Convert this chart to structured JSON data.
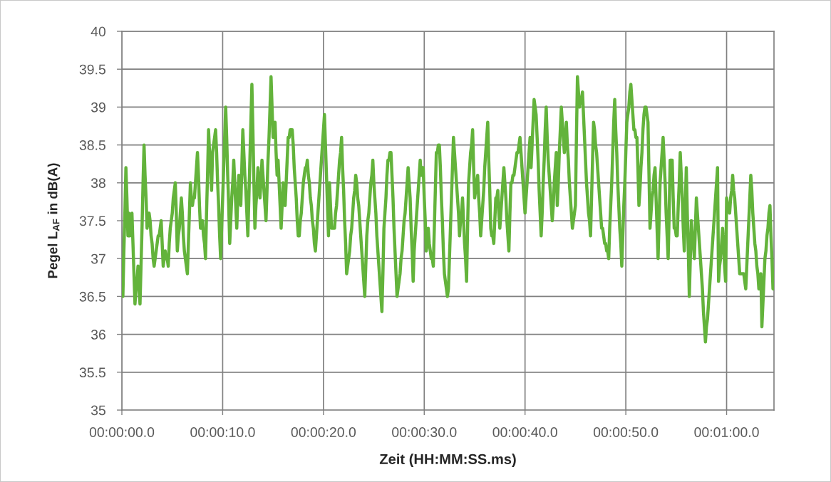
{
  "chart_data": {
    "type": "line",
    "xlabel": "Zeit (HH:MM:SS.ms)",
    "ylabel": "Pegel L$_{AF}$ in dB(A)",
    "ylim": [
      35,
      40
    ],
    "yticks": [
      35,
      35.5,
      36,
      36.5,
      37,
      37.5,
      38,
      38.5,
      39,
      39.5,
      40
    ],
    "grid": true,
    "line_style": "solid",
    "categories": [
      "00:00:00.0",
      null,
      null,
      null,
      null,
      null,
      null,
      null,
      null,
      null,
      null,
      null,
      null,
      null,
      null,
      null,
      null,
      null,
      null,
      null,
      null,
      null,
      null,
      null,
      null,
      null,
      null,
      null,
      null,
      null,
      null,
      null,
      null,
      null,
      null,
      null,
      null,
      null,
      null,
      null,
      null,
      null,
      null,
      null,
      null,
      null,
      null,
      null,
      null,
      null,
      null,
      null,
      null,
      null,
      null,
      null,
      null,
      null,
      null,
      null,
      null,
      null,
      null,
      null,
      null,
      null,
      null,
      null,
      null,
      null,
      null,
      null,
      null,
      null,
      null,
      null,
      null,
      null,
      null,
      null,
      null,
      null,
      null,
      null,
      null,
      null,
      null,
      null,
      null,
      null,
      null,
      null,
      null,
      null,
      null,
      null,
      null,
      null,
      null,
      null,
      "00:00:10.0",
      null,
      null,
      null,
      null,
      null,
      null,
      null,
      null,
      null,
      null,
      null,
      null,
      null,
      null,
      null,
      null,
      null,
      null,
      null,
      null,
      null,
      null,
      null,
      null,
      null,
      null,
      null,
      null,
      null,
      null,
      null,
      null,
      null,
      null,
      null,
      null,
      null,
      null,
      null,
      null,
      null,
      null,
      null,
      null,
      null,
      null,
      null,
      null,
      null,
      null,
      null,
      null,
      null,
      null,
      null,
      null,
      null,
      null,
      null,
      null,
      null,
      null,
      null,
      null,
      null,
      null,
      null,
      null,
      null,
      null,
      null,
      null,
      null,
      null,
      null,
      null,
      null,
      null,
      null,
      null,
      null,
      null,
      null,
      null,
      null,
      null,
      null,
      null,
      null,
      null,
      null,
      null,
      null,
      null,
      null,
      null,
      null,
      null,
      null,
      "00:00:20.0",
      null,
      null,
      null,
      null,
      null,
      null,
      null,
      null,
      null,
      null,
      null,
      null,
      null,
      null,
      null,
      null,
      null,
      null,
      null,
      null,
      null,
      null,
      null,
      null,
      null,
      null,
      null,
      null,
      null,
      null,
      null,
      null,
      null,
      null,
      null,
      null,
      null,
      null,
      null,
      null,
      null,
      null,
      null,
      null,
      null,
      null,
      null,
      null,
      null,
      null,
      null,
      null,
      null,
      null,
      null,
      null,
      null,
      null,
      null,
      null,
      null,
      null,
      null,
      null,
      null,
      null,
      null,
      null,
      null,
      null,
      null,
      null,
      null,
      null,
      null,
      null,
      null,
      null,
      null,
      null,
      null,
      null,
      null,
      null,
      null,
      null,
      null,
      null,
      null,
      null,
      null,
      null,
      null,
      null,
      null,
      null,
      null,
      null,
      null,
      "00:00:30.0",
      null,
      null,
      null,
      null,
      null,
      null,
      null,
      null,
      null,
      null,
      null,
      null,
      null,
      null,
      null,
      null,
      null,
      null,
      null,
      null,
      null,
      null,
      null,
      null,
      null,
      null,
      null,
      null,
      null,
      null,
      null,
      null,
      null,
      null,
      null,
      null,
      null,
      null,
      null,
      null,
      null,
      null,
      null,
      null,
      null,
      null,
      null,
      null,
      null,
      null,
      null,
      null,
      null,
      null,
      null,
      null,
      null,
      null,
      null,
      null,
      null,
      null,
      null,
      null,
      null,
      null,
      null,
      null,
      null,
      null,
      null,
      null,
      null,
      null,
      null,
      null,
      null,
      null,
      null,
      null,
      null,
      null,
      null,
      null,
      null,
      null,
      null,
      null,
      null,
      null,
      null,
      null,
      null,
      null,
      null,
      null,
      null,
      null,
      null,
      "00:00:40.0",
      null,
      null,
      null,
      null,
      null,
      null,
      null,
      null,
      null,
      null,
      null,
      null,
      null,
      null,
      null,
      null,
      null,
      null,
      null,
      null,
      null,
      null,
      null,
      null,
      null,
      null,
      null,
      null,
      null,
      null,
      null,
      null,
      null,
      null,
      null,
      null,
      null,
      null,
      null,
      null,
      null,
      null,
      null,
      null,
      null,
      null,
      null,
      null,
      null,
      null,
      null,
      null,
      null,
      null,
      null,
      null,
      null,
      null,
      null,
      null,
      null,
      null,
      null,
      null,
      null,
      null,
      null,
      null,
      null,
      null,
      null,
      null,
      null,
      null,
      null,
      null,
      null,
      null,
      null,
      null,
      null,
      null,
      null,
      null,
      null,
      null,
      null,
      null,
      null,
      null,
      null,
      null,
      null,
      null,
      null,
      null,
      null,
      null,
      null,
      "00:00:50.0",
      null,
      null,
      null,
      null,
      null,
      null,
      null,
      null,
      null,
      null,
      null,
      null,
      null,
      null,
      null,
      null,
      null,
      null,
      null,
      null,
      null,
      null,
      null,
      null,
      null,
      null,
      null,
      null,
      null,
      null,
      null,
      null,
      null,
      null,
      null,
      null,
      null,
      null,
      null,
      null,
      null,
      null,
      null,
      null,
      null,
      null,
      null,
      null,
      null,
      null,
      null,
      null,
      null,
      null,
      null,
      null,
      null,
      null,
      null,
      null,
      null,
      null,
      null,
      null,
      null,
      null,
      null,
      null,
      null,
      null,
      null,
      null,
      null,
      null,
      null,
      null,
      null,
      null,
      null,
      null,
      null,
      null,
      null,
      null,
      null,
      null,
      null,
      null,
      null,
      null,
      null,
      null,
      null,
      null,
      null,
      null,
      null,
      null,
      null,
      "00:01:00.0",
      null,
      null,
      null,
      null,
      null,
      null,
      null,
      null,
      null,
      null,
      null,
      null,
      null,
      null,
      null,
      null,
      null,
      null,
      null,
      null,
      null,
      null,
      null,
      null,
      null,
      null,
      null,
      null,
      null,
      null,
      null,
      null,
      null,
      null,
      null,
      null,
      null,
      null,
      null,
      null,
      null,
      null,
      null,
      null,
      null,
      null,
      null
    ],
    "series": [
      {
        "color": "#63b33b",
        "values": [
          37.0,
          36.5,
          37.1,
          37.6,
          38.2,
          37.8,
          37.3,
          37.6,
          37.3,
          37.4,
          37.6,
          37.2,
          36.8,
          36.4,
          36.6,
          36.7,
          36.9,
          36.6,
          36.4,
          36.9,
          37.4,
          38.0,
          38.5,
          38.1,
          37.8,
          37.4,
          37.5,
          37.6,
          37.5,
          37.3,
          37.2,
          37.0,
          36.9,
          37.0,
          37.1,
          37.2,
          37.3,
          37.3,
          37.4,
          37.5,
          37.2,
          36.9,
          37.0,
          37.1,
          37.0,
          37.0,
          36.9,
          37.2,
          37.4,
          37.5,
          37.6,
          37.8,
          37.9,
          38.0,
          37.6,
          37.1,
          37.3,
          37.4,
          37.6,
          37.8,
          37.6,
          37.3,
          37.1,
          37.0,
          36.9,
          36.8,
          37.2,
          37.6,
          38.0,
          37.8,
          37.7,
          37.8,
          37.8,
          38.0,
          38.2,
          38.4,
          38.1,
          37.7,
          37.4,
          37.4,
          37.5,
          37.3,
          37.2,
          37.0,
          37.6,
          38.1,
          38.7,
          38.4,
          38.2,
          37.9,
          38.4,
          38.5,
          38.6,
          38.7,
          38.4,
          38.0,
          37.7,
          37.3,
          37.0,
          37.4,
          37.8,
          38.2,
          38.6,
          39.0,
          38.6,
          38.1,
          37.7,
          37.2,
          37.5,
          37.8,
          38.0,
          38.3,
          38.0,
          37.7,
          37.4,
          37.8,
          38.1,
          37.9,
          37.7,
          38.2,
          38.7,
          38.4,
          38.1,
          37.9,
          37.6,
          37.3,
          37.8,
          38.3,
          38.8,
          39.3,
          38.7,
          38.0,
          37.4,
          37.7,
          37.9,
          38.2,
          38.0,
          37.8,
          38.0,
          38.3,
          38.1,
          37.9,
          37.7,
          37.5,
          37.9,
          38.3,
          38.6,
          39.0,
          39.4,
          39.0,
          38.6,
          38.7,
          38.8,
          38.4,
          38.1,
          38.3,
          38.0,
          37.7,
          37.4,
          37.7,
          38.0,
          37.8,
          37.7,
          38.0,
          38.3,
          38.6,
          38.6,
          38.7,
          38.7,
          38.7,
          38.5,
          38.2,
          38.0,
          37.8,
          37.5,
          37.3,
          37.3,
          37.5,
          37.6,
          37.8,
          38.0,
          38.1,
          38.2,
          38.2,
          38.3,
          38.1,
          38.0,
          37.8,
          37.7,
          37.5,
          37.4,
          37.2,
          37.1,
          37.3,
          37.5,
          37.7,
          37.9,
          38.1,
          38.3,
          38.5,
          38.7,
          38.9,
          38.5,
          38.1,
          37.7,
          37.3,
          38.0,
          37.7,
          37.4,
          37.4,
          37.4,
          37.4,
          37.6,
          37.7,
          37.9,
          38.1,
          38.3,
          38.4,
          38.6,
          38.2,
          37.9,
          37.5,
          37.2,
          36.8,
          36.9,
          37.0,
          37.1,
          37.3,
          37.4,
          37.6,
          37.8,
          37.9,
          38.1,
          38.0,
          37.8,
          37.7,
          37.5,
          37.3,
          37.1,
          36.9,
          36.7,
          36.5,
          36.9,
          37.3,
          37.5,
          37.6,
          37.8,
          38.0,
          38.1,
          38.3,
          38.0,
          37.8,
          37.6,
          37.3,
          37.1,
          36.9,
          36.7,
          36.5,
          36.3,
          36.8,
          37.4,
          37.6,
          37.8,
          38.1,
          38.3,
          38.3,
          38.4,
          38.4,
          38.1,
          37.8,
          37.4,
          37.1,
          36.8,
          36.5,
          36.6,
          36.7,
          36.8,
          37.0,
          37.1,
          37.3,
          37.5,
          37.6,
          37.8,
          38.0,
          38.2,
          38.0,
          37.8,
          37.4,
          37.1,
          36.7,
          37.1,
          37.3,
          37.5,
          37.7,
          37.9,
          38.1,
          38.3,
          38.1,
          38.2,
          38.2,
          37.8,
          37.5,
          37.1,
          37.2,
          37.4,
          37.2,
          37.1,
          37.0,
          37.0,
          36.9,
          37.4,
          37.9,
          38.4,
          38.4,
          38.5,
          38.5,
          38.2,
          37.8,
          37.5,
          37.1,
          36.8,
          36.7,
          36.6,
          36.5,
          36.6,
          37.0,
          37.4,
          37.8,
          38.2,
          38.6,
          38.4,
          38.2,
          38.0,
          37.8,
          37.6,
          37.3,
          37.5,
          37.6,
          37.8,
          37.5,
          37.2,
          37.0,
          36.7,
          37.4,
          38.0,
          38.2,
          38.4,
          38.5,
          38.7,
          38.2,
          37.8,
          37.9,
          38.0,
          38.1,
          37.8,
          37.6,
          37.3,
          37.5,
          37.7,
          37.9,
          38.2,
          38.4,
          38.6,
          38.8,
          38.3,
          37.9,
          37.4,
          37.3,
          37.3,
          37.2,
          37.5,
          37.8,
          37.8,
          37.9,
          37.6,
          37.4,
          37.6,
          37.8,
          38.0,
          38.2,
          38.0,
          37.8,
          37.5,
          37.3,
          37.1,
          37.6,
          38.0,
          38.0,
          38.1,
          38.1,
          38.2,
          38.3,
          38.4,
          38.4,
          38.5,
          38.6,
          38.4,
          38.2,
          38.0,
          37.8,
          37.6,
          37.8,
          38.0,
          38.2,
          38.4,
          38.6,
          38.2,
          38.5,
          38.8,
          39.1,
          39.0,
          38.9,
          38.6,
          38.3,
          37.9,
          37.6,
          37.3,
          37.6,
          38.0,
          38.3,
          38.7,
          39.0,
          38.6,
          38.3,
          38.1,
          37.9,
          37.7,
          37.5,
          37.7,
          38.0,
          38.2,
          38.4,
          37.7,
          38.0,
          38.4,
          38.7,
          39.0,
          38.8,
          38.6,
          38.4,
          38.6,
          38.8,
          38.5,
          38.3,
          38.0,
          37.8,
          37.6,
          37.4,
          37.5,
          37.6,
          37.7,
          38.6,
          39.4,
          39.2,
          39.0,
          39.1,
          39.1,
          39.2,
          38.9,
          38.6,
          38.3,
          38.0,
          37.8,
          37.6,
          37.5,
          37.3,
          37.8,
          38.3,
          38.8,
          38.7,
          38.5,
          38.4,
          38.2,
          38.0,
          37.8,
          37.6,
          37.4,
          37.4,
          37.3,
          37.2,
          37.2,
          37.1,
          37.1,
          37.0,
          37.4,
          37.7,
          38.0,
          38.4,
          38.8,
          39.1,
          38.7,
          38.4,
          38.0,
          37.7,
          37.4,
          37.2,
          36.9,
          37.3,
          37.7,
          38.0,
          38.4,
          38.8,
          38.9,
          39.0,
          39.2,
          39.3,
          39.1,
          38.9,
          38.7,
          38.7,
          38.6,
          38.6,
          38.2,
          37.7,
          37.9,
          38.2,
          38.4,
          38.7,
          38.9,
          39.0,
          39.0,
          38.9,
          38.8,
          38.1,
          37.4,
          37.6,
          37.8,
          37.9,
          38.1,
          38.2,
          37.8,
          37.4,
          37.0,
          37.5,
          38.0,
          38.2,
          38.4,
          38.6,
          38.3,
          38.0,
          37.6,
          37.3,
          37.0,
          37.6,
          38.3,
          38.3,
          38.3,
          37.8,
          37.4,
          37.4,
          37.3,
          37.3,
          37.7,
          38.0,
          38.4,
          38.1,
          37.8,
          37.4,
          37.1,
          37.7,
          38.2,
          37.6,
          37.1,
          36.5,
          37.0,
          37.5,
          37.3,
          37.2,
          37.0,
          37.4,
          37.8,
          37.6,
          37.4,
          37.2,
          37.0,
          36.8,
          36.6,
          36.3,
          36.1,
          35.9,
          36.1,
          36.2,
          36.4,
          36.6,
          36.8,
          37.0,
          37.2,
          37.4,
          37.6,
          37.8,
          38.0,
          38.2,
          36.7,
          36.9,
          37.0,
          37.2,
          37.4,
          37.2,
          36.9,
          36.7,
          37.8,
          37.7,
          37.7,
          37.6,
          37.8,
          37.9,
          38.1,
          37.9,
          37.8,
          37.6,
          37.4,
          37.2,
          37.0,
          36.8,
          36.8,
          36.8,
          36.8,
          36.8,
          36.7,
          36.6,
          36.9,
          37.2,
          37.5,
          37.8,
          38.1,
          37.9,
          37.6,
          37.4,
          37.2,
          37.1,
          36.9,
          36.8,
          36.6,
          36.7,
          36.8,
          36.1,
          36.4,
          36.7,
          37.0,
          37.1,
          37.3,
          37.4,
          37.6,
          37.7,
          37.3,
          37.0,
          36.6,
          36.6
        ]
      }
    ]
  }
}
